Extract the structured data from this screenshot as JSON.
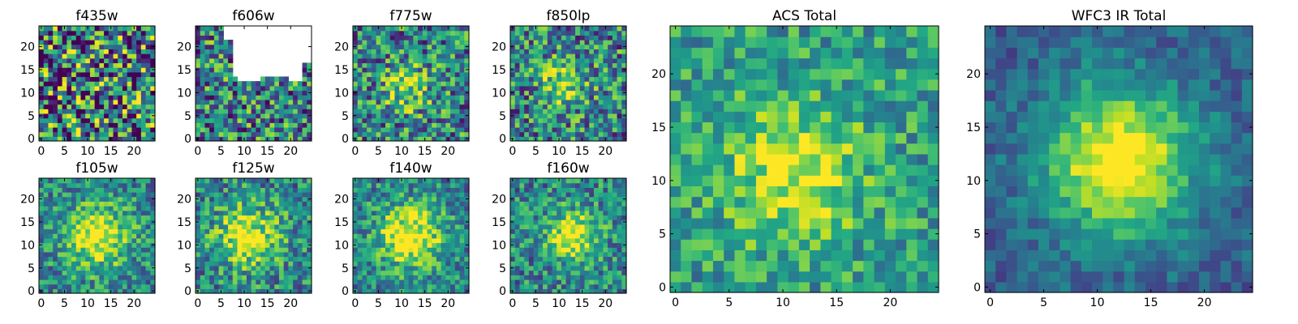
{
  "chart_data": [
    {
      "type": "heatmap",
      "title": "f435w",
      "xticks": [
        0,
        5,
        10,
        15,
        20
      ],
      "yticks": [
        0,
        5,
        10,
        15,
        20
      ],
      "xlim": [
        -0.5,
        24.5
      ],
      "ylim": [
        -0.5,
        24.5
      ],
      "grid_size": [
        25,
        25
      ],
      "colormap": "viridis",
      "description_of_values": "noise-dominated, no visible source"
    },
    {
      "type": "heatmap",
      "title": "f606w",
      "xticks": [
        0,
        5,
        10,
        15,
        20
      ],
      "yticks": [
        0,
        5,
        10,
        15,
        20
      ],
      "xlim": [
        -0.5,
        24.5
      ],
      "ylim": [
        -0.5,
        24.5
      ],
      "grid_size": [
        25,
        25
      ],
      "colormap": "viridis",
      "masked_region": "upper right area (no data)"
    },
    {
      "type": "heatmap",
      "title": "f775w",
      "xticks": [
        0,
        5,
        10,
        15,
        20
      ],
      "yticks": [
        0,
        5,
        10,
        15,
        20
      ],
      "xlim": [
        -0.5,
        24.5
      ],
      "ylim": [
        -0.5,
        24.5
      ],
      "grid_size": [
        25,
        25
      ],
      "colormap": "viridis",
      "peak": [
        11,
        11
      ]
    },
    {
      "type": "heatmap",
      "title": "f850lp",
      "xticks": [
        0,
        5,
        10,
        15,
        20
      ],
      "yticks": [
        0,
        5,
        10,
        15,
        20
      ],
      "xlim": [
        -0.5,
        24.5
      ],
      "ylim": [
        -0.5,
        24.5
      ],
      "grid_size": [
        25,
        25
      ],
      "colormap": "viridis",
      "peak": [
        11,
        12
      ]
    },
    {
      "type": "heatmap",
      "title": "f105w",
      "xticks": [
        0,
        5,
        10,
        15,
        20
      ],
      "yticks": [
        0,
        5,
        10,
        15,
        20
      ],
      "xlim": [
        -0.5,
        24.5
      ],
      "ylim": [
        -0.5,
        24.5
      ],
      "grid_size": [
        25,
        25
      ],
      "colormap": "viridis",
      "peak": [
        12,
        12
      ]
    },
    {
      "type": "heatmap",
      "title": "f125w",
      "xticks": [
        0,
        5,
        10,
        15,
        20
      ],
      "yticks": [
        0,
        5,
        10,
        15,
        20
      ],
      "xlim": [
        -0.5,
        24.5
      ],
      "ylim": [
        -0.5,
        24.5
      ],
      "grid_size": [
        25,
        25
      ],
      "colormap": "viridis",
      "peak": [
        11,
        12
      ]
    },
    {
      "type": "heatmap",
      "title": "f140w",
      "xticks": [
        0,
        5,
        10,
        15,
        20
      ],
      "yticks": [
        0,
        5,
        10,
        15,
        20
      ],
      "xlim": [
        -0.5,
        24.5
      ],
      "ylim": [
        -0.5,
        24.5
      ],
      "grid_size": [
        25,
        25
      ],
      "colormap": "viridis",
      "peak": [
        12,
        12
      ]
    },
    {
      "type": "heatmap",
      "title": "f160w",
      "xticks": [
        0,
        5,
        10,
        15,
        20
      ],
      "yticks": [
        0,
        5,
        10,
        15,
        20
      ],
      "xlim": [
        -0.5,
        24.5
      ],
      "ylim": [
        -0.5,
        24.5
      ],
      "grid_size": [
        25,
        25
      ],
      "colormap": "viridis",
      "peak": [
        13,
        12
      ]
    },
    {
      "type": "heatmap",
      "title": "ACS Total",
      "xticks": [
        0,
        5,
        10,
        15,
        20
      ],
      "yticks": [
        0,
        5,
        10,
        15,
        20
      ],
      "xlim": [
        -0.5,
        24.5
      ],
      "ylim": [
        -0.5,
        24.5
      ],
      "grid_size": [
        25,
        25
      ],
      "colormap": "viridis",
      "peak": [
        11,
        11
      ]
    },
    {
      "type": "heatmap",
      "title": "WFC3 IR Total",
      "xticks": [
        0,
        5,
        10,
        15,
        20
      ],
      "yticks": [
        0,
        5,
        10,
        15,
        20
      ],
      "xlim": [
        -0.5,
        24.5
      ],
      "ylim": [
        -0.5,
        24.5
      ],
      "grid_size": [
        25,
        25
      ],
      "colormap": "viridis",
      "peak": [
        12,
        12
      ]
    }
  ]
}
